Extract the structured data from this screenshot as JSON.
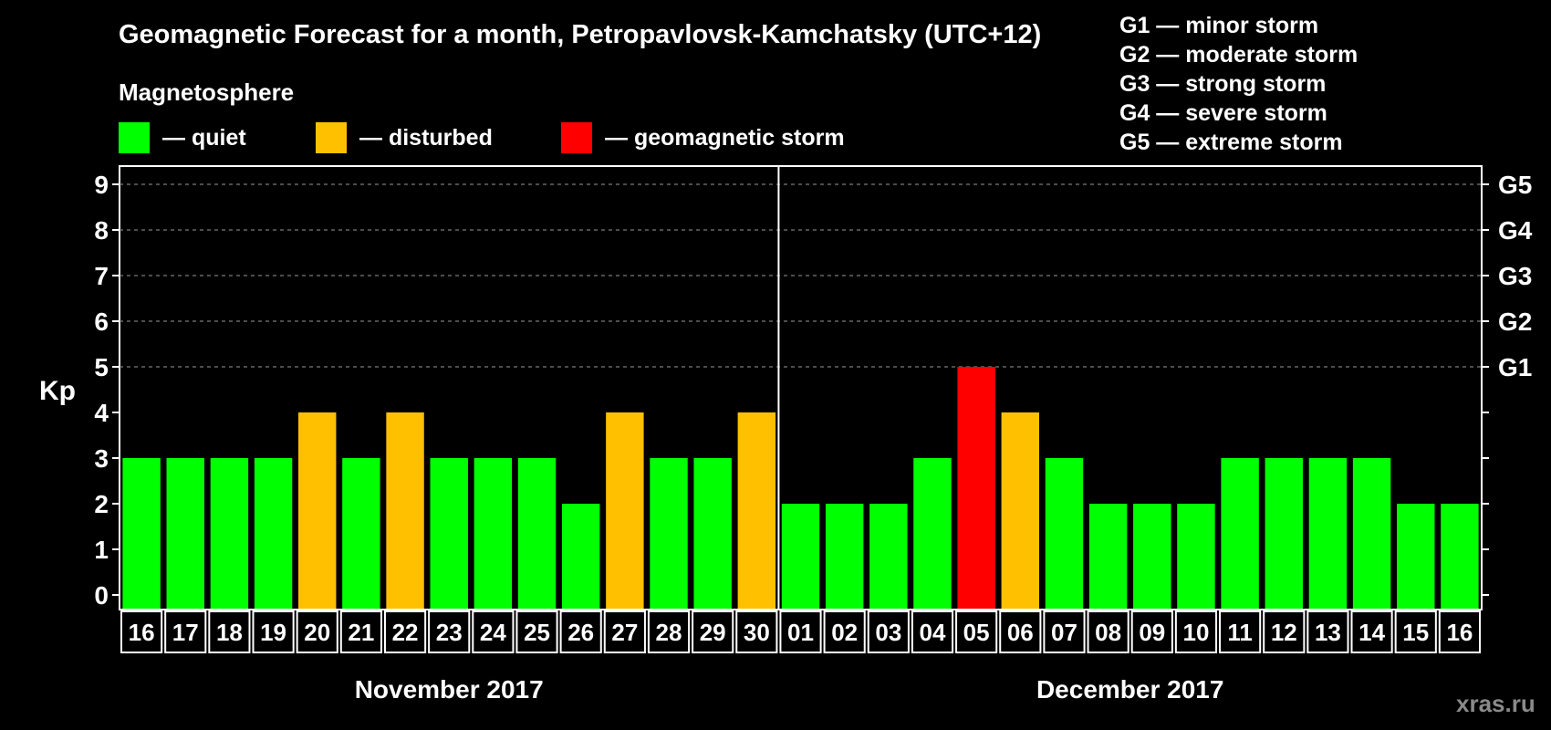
{
  "title": "Geomagnetic Forecast for a month, Petropavlovsk-Kamchatsky (UTC+12)",
  "subtitle": "Magnetosphere",
  "legend": [
    {
      "label": "— quiet",
      "color": "#00ff00"
    },
    {
      "label": "— disturbed",
      "color": "#ffc000"
    },
    {
      "label": "— geomagnetic storm",
      "color": "#ff0000"
    }
  ],
  "g_scale": [
    "G1 — minor storm",
    "G2 — moderate storm",
    "G3 — strong storm",
    "G4 — severe storm",
    "G5 — extreme storm"
  ],
  "watermark": "xras.ru",
  "chart_data": {
    "type": "bar",
    "title": "Geomagnetic Forecast for a month, Petropavlovsk-Kamchatsky (UTC+12)",
    "ylabel": "Kp",
    "ylim": [
      0,
      9
    ],
    "y_ticks": [
      "0",
      "1",
      "2",
      "3",
      "4",
      "5",
      "6",
      "7",
      "8",
      "9"
    ],
    "right_ticks": [
      {
        "value": 5,
        "label": "G1"
      },
      {
        "value": 6,
        "label": "G2"
      },
      {
        "value": 7,
        "label": "G3"
      },
      {
        "value": 8,
        "label": "G4"
      },
      {
        "value": 9,
        "label": "G5"
      }
    ],
    "categories": [
      "16",
      "17",
      "18",
      "19",
      "20",
      "21",
      "22",
      "23",
      "24",
      "25",
      "26",
      "27",
      "28",
      "29",
      "30",
      "01",
      "02",
      "03",
      "04",
      "05",
      "06",
      "07",
      "08",
      "09",
      "10",
      "11",
      "12",
      "13",
      "14",
      "15",
      "16"
    ],
    "values": [
      3,
      3,
      3,
      3,
      4,
      3,
      4,
      3,
      3,
      3,
      2,
      4,
      3,
      3,
      4,
      2,
      2,
      2,
      3,
      5,
      4,
      3,
      2,
      2,
      2,
      3,
      3,
      3,
      3,
      2,
      2
    ],
    "colors": {
      "quiet": "#00ff00",
      "disturbed": "#ffc000",
      "storm": "#ff0000"
    },
    "months": [
      {
        "label": "November 2017",
        "start": 0,
        "end": 14
      },
      {
        "label": "December 2017",
        "start": 15,
        "end": 30
      }
    ],
    "grid": true
  }
}
